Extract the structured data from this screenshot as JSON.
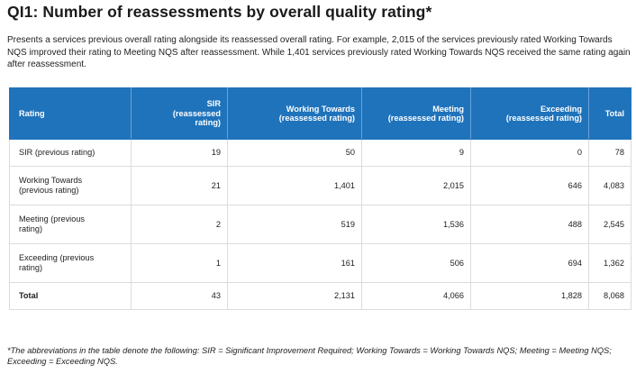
{
  "title": "QI1: Number of reassessments by overall quality rating*",
  "intro": "Presents a services previous overall rating alongside its reassessed overall rating. For example, 2,015 of the services previously rated Working Towards NQS improved their rating to Meeting NQS after reassessment. While 1,401 services previously rated Working Towards NQS received the same rating again after reassessment.",
  "table": {
    "headers": {
      "rating": "Rating",
      "sir_line1": "SIR",
      "sir_line2": "(reassessed",
      "sir_line3": "rating)",
      "wt_line1": "Working Towards",
      "wt_line2": "(reassessed rating)",
      "meeting_line1": "Meeting",
      "meeting_line2": "(reassessed rating)",
      "exceeding_line1": "Exceeding",
      "exceeding_line2": "(reassessed rating)",
      "total": "Total"
    },
    "rows": [
      {
        "label_line1": "SIR (previous rating)",
        "label_line2": "",
        "sir": "19",
        "wt": "50",
        "meeting": "9",
        "exceeding": "0",
        "total": "78"
      },
      {
        "label_line1": "Working Towards",
        "label_line2": "(previous rating)",
        "sir": "21",
        "wt": "1,401",
        "meeting": "2,015",
        "exceeding": "646",
        "total": "4,083"
      },
      {
        "label_line1": "Meeting (previous",
        "label_line2": "rating)",
        "sir": "2",
        "wt": "519",
        "meeting": "1,536",
        "exceeding": "488",
        "total": "2,545"
      },
      {
        "label_line1": "Exceeding (previous",
        "label_line2": "rating)",
        "sir": "1",
        "wt": "161",
        "meeting": "506",
        "exceeding": "694",
        "total": "1,362"
      }
    ],
    "total_row": {
      "label": "Total",
      "sir": "43",
      "wt": "2,131",
      "meeting": "4,066",
      "exceeding": "1,828",
      "total": "8,068"
    }
  },
  "footnote": "*The abbreviations in the table denote the following: SIR = Significant Improvement Required; Working Towards = Working Towards NQS; Meeting = Meeting NQS; Exceeding = Exceeding NQS.",
  "colors": {
    "header_background": "#1f73bb",
    "header_text": "#ffffff",
    "grid_line": "#dcdcdc"
  }
}
